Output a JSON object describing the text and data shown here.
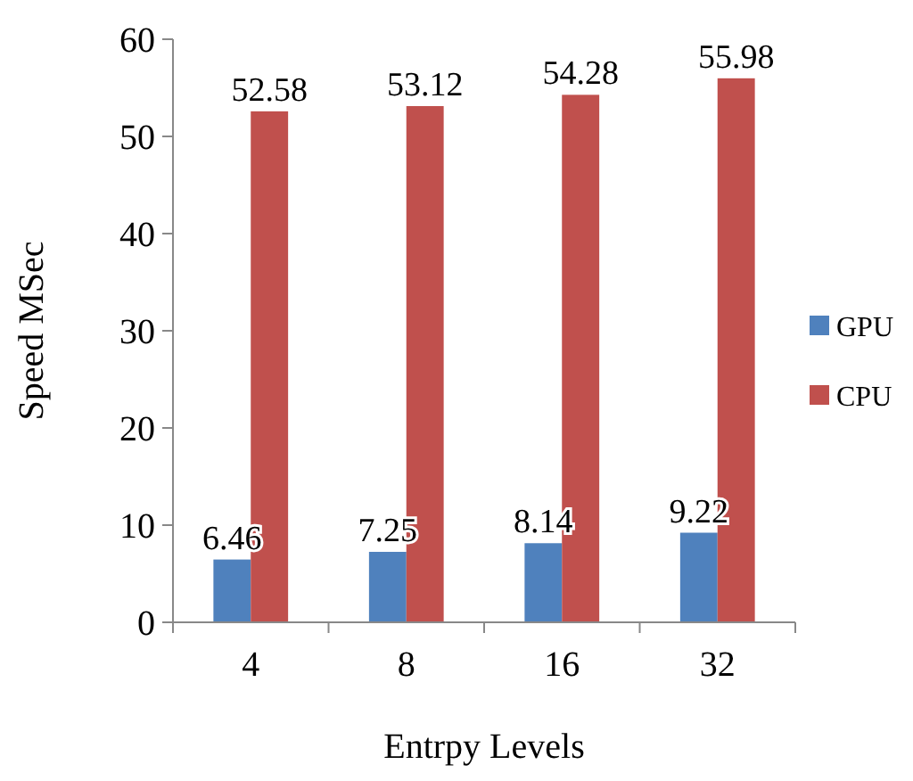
{
  "chart_data": {
    "type": "bar",
    "xlabel": "Entrpy Levels",
    "ylabel": "Speed MSec",
    "categories": [
      "4",
      "8",
      "16",
      "32"
    ],
    "series": [
      {
        "name": "GPU",
        "color": "#4f81bd",
        "values": [
          6.46,
          7.25,
          8.14,
          9.22
        ]
      },
      {
        "name": "CPU",
        "color": "#c0504d",
        "values": [
          52.58,
          53.12,
          54.28,
          55.98
        ]
      }
    ],
    "ylim": [
      0,
      60
    ],
    "yticks": [
      0,
      10,
      20,
      30,
      40,
      50,
      60
    ],
    "data_labels": true,
    "legend": "right",
    "grid": false
  }
}
